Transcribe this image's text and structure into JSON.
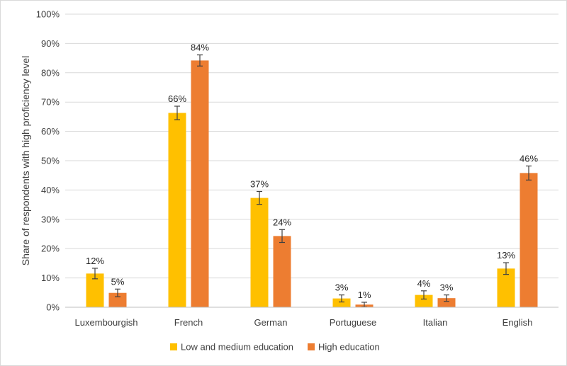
{
  "chart_data": {
    "type": "bar",
    "title": "",
    "xlabel": "",
    "ylabel": "Share of respondents with high proficiency level",
    "ylim": [
      0,
      100
    ],
    "yticks": [
      0,
      10,
      20,
      30,
      40,
      50,
      60,
      70,
      80,
      90,
      100
    ],
    "ytick_suffix": "%",
    "grid": true,
    "legend_position": "bottom",
    "categories": [
      "Luxembourgish",
      "French",
      "German",
      "Portuguese",
      "Italian",
      "English"
    ],
    "series": [
      {
        "name": "Low and medium education",
        "color": "#FFC000",
        "values": [
          11.5,
          66.3,
          37.3,
          3.0,
          4.2,
          13.2
        ],
        "labels": [
          "12%",
          "66%",
          "37%",
          "3%",
          "4%",
          "13%"
        ],
        "error": [
          1.8,
          2.3,
          2.2,
          1.2,
          1.4,
          2.0
        ]
      },
      {
        "name": "High education",
        "color": "#ED7D31",
        "values": [
          4.9,
          84.2,
          24.3,
          0.9,
          3.1,
          45.8
        ],
        "labels": [
          "5%",
          "84%",
          "24%",
          "1%",
          "3%",
          "46%"
        ],
        "error": [
          1.3,
          1.9,
          2.2,
          0.8,
          1.1,
          2.4
        ]
      }
    ]
  }
}
